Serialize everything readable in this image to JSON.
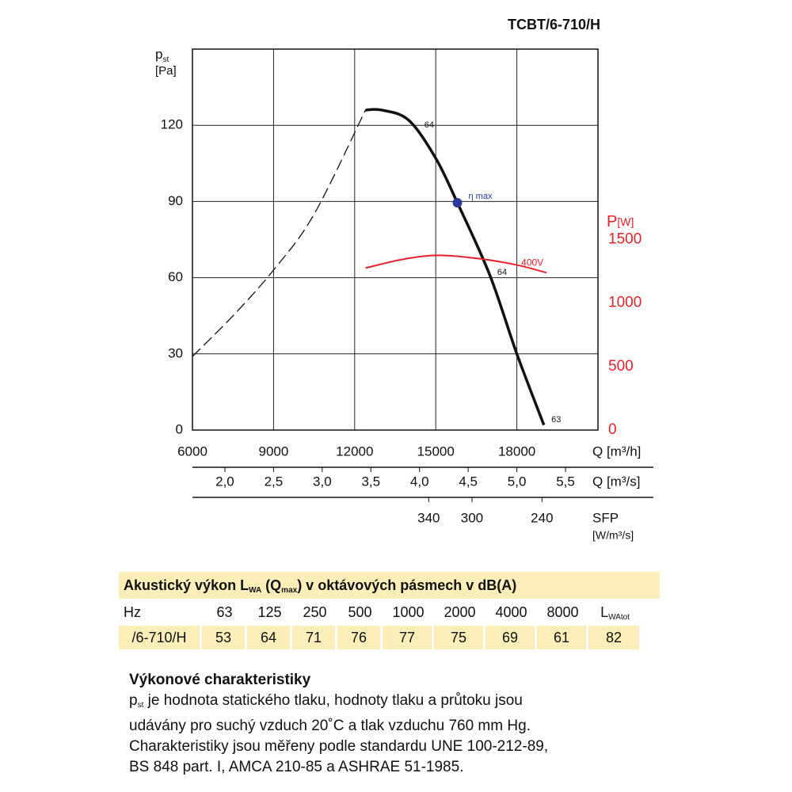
{
  "chart_data": {
    "type": "line",
    "title": "TCBT/6-710/H",
    "ylabel": [
      "p",
      "st"
    ],
    "yunit": "[Pa]",
    "y2label": [
      "P",
      "[W]"
    ],
    "xlabel": "Q [m³/h]",
    "x2label": "Q [m³/s]",
    "x3label": "SFP",
    "x3unit": "[W/m³/s]",
    "xlim": [
      6000,
      21000
    ],
    "xticks": [
      6000,
      9000,
      12000,
      15000,
      18000
    ],
    "x2lim": [
      1.6667,
      5.8333
    ],
    "x2ticks": [
      {
        "value": 2.0,
        "label": "2,0"
      },
      {
        "value": 2.5,
        "label": "2,5"
      },
      {
        "value": 3.0,
        "label": "3,0"
      },
      {
        "value": 3.5,
        "label": "3,5"
      },
      {
        "value": 4.0,
        "label": "4,0"
      },
      {
        "value": 4.5,
        "label": "4,5"
      },
      {
        "value": 5.0,
        "label": "5,0"
      },
      {
        "value": 5.5,
        "label": "5,5"
      }
    ],
    "x3ticks": [
      {
        "value": 14740,
        "label": "340"
      },
      {
        "value": 16340,
        "label": "300"
      },
      {
        "value": 18930,
        "label": "240"
      }
    ],
    "ylim": [
      0,
      150
    ],
    "yticks": [
      0,
      30,
      60,
      90,
      120
    ],
    "y2lim": [
      0,
      3000
    ],
    "y2ticks": [
      0,
      500,
      1000,
      1500
    ],
    "y2color": "#e8202a",
    "grid": true,
    "series": [
      {
        "x": [
          12400,
          13000,
          14000,
          15000,
          15800,
          17000,
          18000,
          19000
        ],
        "values": [
          126,
          126,
          122,
          107,
          89.5,
          61,
          30,
          2
        ],
        "color": "#111111",
        "dash": false
      },
      {
        "x": [
          6000,
          7500,
          9000,
          10500,
          12400
        ],
        "values": [
          29,
          45,
          63,
          85,
          126
        ],
        "color": "#111111",
        "dash": true
      },
      {
        "name": "400V",
        "axis": "y2",
        "x": [
          12400,
          13800,
          15100,
          16600,
          18000,
          19100
        ],
        "values": [
          1276,
          1345,
          1376,
          1350,
          1300,
          1239
        ],
        "color": "#e8202a",
        "dash": false
      }
    ],
    "annotations": [
      {
        "text": "64",
        "x": 14400,
        "y": 120
      },
      {
        "text": "64",
        "x": 17100,
        "y": 62
      },
      {
        "text": "63",
        "x": 19100,
        "y": 4
      }
    ],
    "eta_max": {
      "label": "η max",
      "x": 15800,
      "y": 89.5,
      "color": "#2a3a9a"
    }
  },
  "table": {
    "title": [
      "Akustický výkon L",
      "WA",
      " (Q",
      "max",
      ") v oktávových pásmech v dB(A)"
    ],
    "header": [
      "Hz",
      "63",
      "125",
      "250",
      "500",
      "1000",
      "2000",
      "4000",
      "8000",
      [
        "L",
        "WAtot"
      ]
    ],
    "row": [
      "/6-710/H",
      53,
      64,
      71,
      76,
      77,
      75,
      69,
      61,
      82
    ]
  },
  "notes": {
    "heading": "Výkonové charakteristiky",
    "first_line": [
      "p",
      "st",
      " je hodnota statického tlaku, hodnoty tlaku a průtoku jsou"
    ],
    "lines": [
      "udávány pro suchý vzduch 20˚C a tlak vzduchu 760 mm Hg.",
      "Charakteristiky jsou měřeny podle standardu UNE 100-212-89,",
      "BS 848 part. I, AMCA 210-85 a ASHRAE 51-1985."
    ]
  }
}
